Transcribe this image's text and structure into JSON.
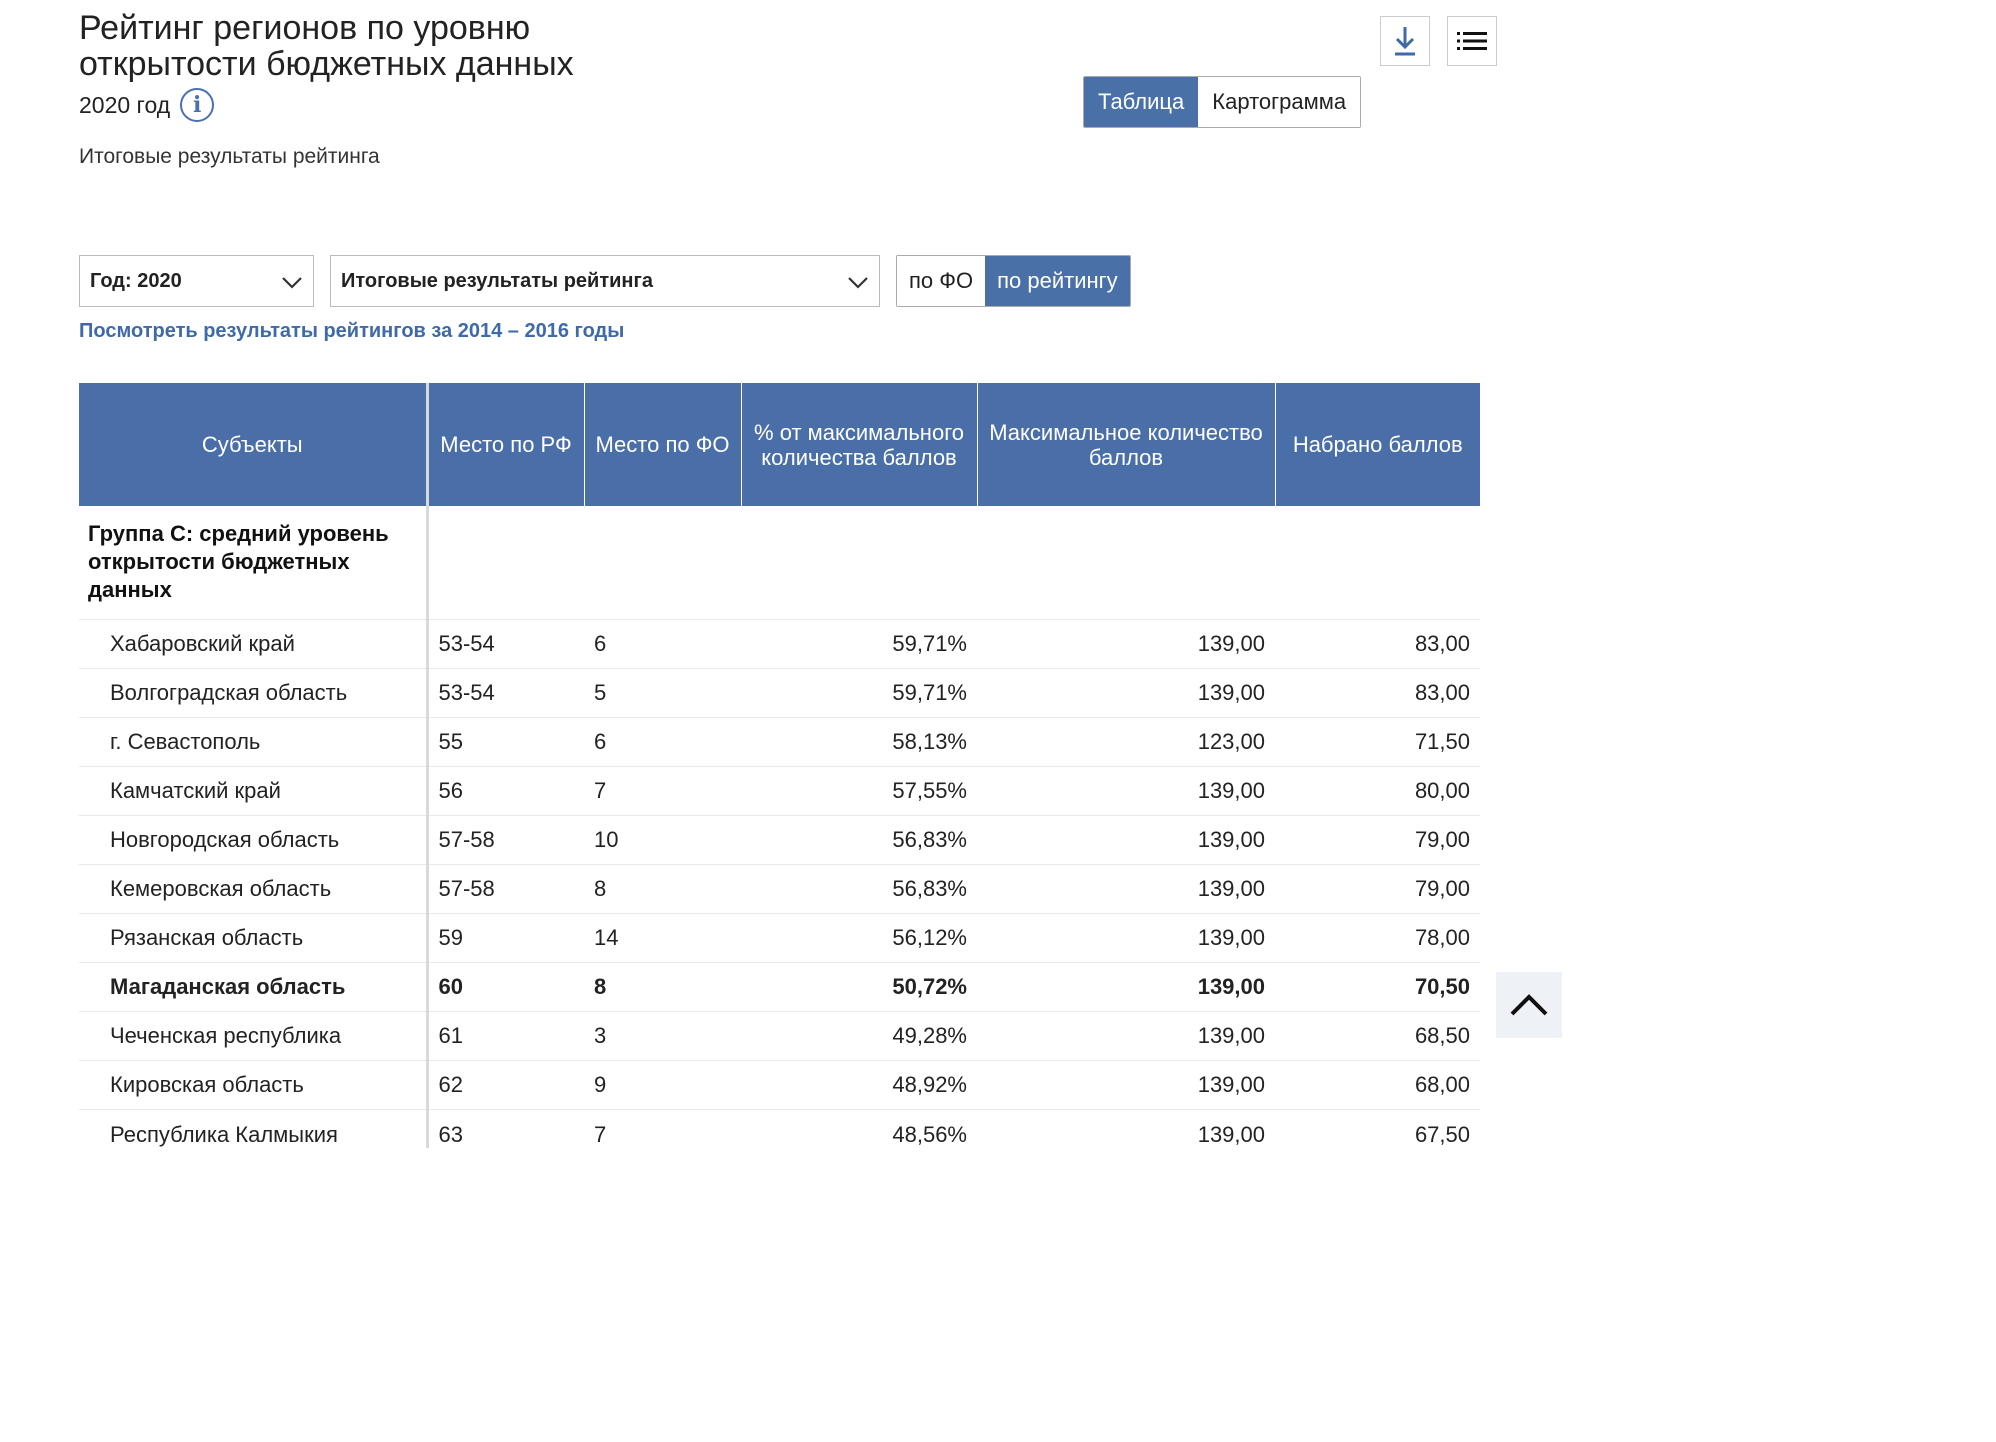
{
  "header": {
    "title": "Рейтинг регионов по уровню открытости бюджетных данных",
    "year_label": "2020 год",
    "subtitle": "Итоговые результаты рейтинга",
    "view_tabs": [
      "Таблица",
      "Картограмма"
    ],
    "active_view": "Таблица"
  },
  "filters": {
    "year_select": "Год: 2020",
    "type_select": "Итоговые результаты рейтинга",
    "sort_tabs": [
      "по ФО",
      "по рейтингу"
    ],
    "active_sort": "по рейтингу",
    "history_link": "Посмотреть результаты рейтингов за 2014 – 2016 годы"
  },
  "table": {
    "columns": [
      "Субъекты",
      "Место по РФ",
      "Место по ФО",
      "% от максимального количества баллов",
      "Максимальное количество баллов",
      "Набрано баллов"
    ],
    "group_label": "Группа С: средний уровень открытости бюджетных данных",
    "rows": [
      {
        "region": "Хабаровский край",
        "rf": "53-54",
        "fo": "6",
        "pct": "59,71%",
        "max": "139,00",
        "score": "83,00"
      },
      {
        "region": "Волгоградская область",
        "rf": "53-54",
        "fo": "5",
        "pct": "59,71%",
        "max": "139,00",
        "score": "83,00"
      },
      {
        "region": "г. Севастополь",
        "rf": "55",
        "fo": "6",
        "pct": "58,13%",
        "max": "123,00",
        "score": "71,50"
      },
      {
        "region": "Камчатский край",
        "rf": "56",
        "fo": "7",
        "pct": "57,55%",
        "max": "139,00",
        "score": "80,00"
      },
      {
        "region": "Новгородская область",
        "rf": "57-58",
        "fo": "10",
        "pct": "56,83%",
        "max": "139,00",
        "score": "79,00"
      },
      {
        "region": "Кемеровская область",
        "rf": "57-58",
        "fo": "8",
        "pct": "56,83%",
        "max": "139,00",
        "score": "79,00"
      },
      {
        "region": "Рязанская область",
        "rf": "59",
        "fo": "14",
        "pct": "56,12%",
        "max": "139,00",
        "score": "78,00"
      },
      {
        "region": "Магаданская область",
        "rf": "60",
        "fo": "8",
        "pct": "50,72%",
        "max": "139,00",
        "score": "70,50"
      },
      {
        "region": "Чеченская республика",
        "rf": "61",
        "fo": "3",
        "pct": "49,28%",
        "max": "139,00",
        "score": "68,50"
      },
      {
        "region": "Кировская область",
        "rf": "62",
        "fo": "9",
        "pct": "48,92%",
        "max": "139,00",
        "score": "68,00"
      },
      {
        "region": "Республика Калмыкия",
        "rf": "63",
        "fo": "7",
        "pct": "48,56%",
        "max": "139,00",
        "score": "67,50"
      }
    ],
    "highlighted_region": "Магаданская область"
  },
  "icons": {
    "info": "info-icon",
    "download": "download-icon",
    "list": "list-icon",
    "chevron": "chevron-down-icon",
    "scroll_top": "chevron-up-icon"
  },
  "colors": {
    "accent": "#4a6ea8",
    "link": "#3f6aa8"
  }
}
